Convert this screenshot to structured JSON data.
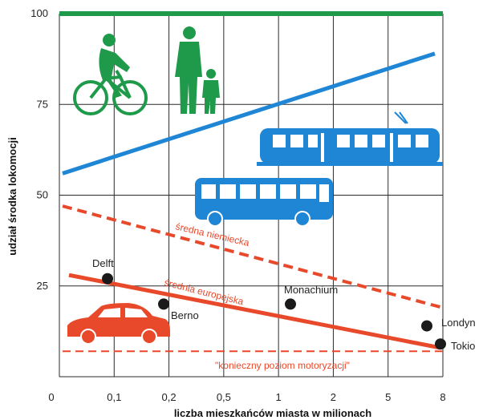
{
  "chart_data": {
    "type": "line",
    "xlabel": "liczba mieszkańców miasta w milionach",
    "ylabel": "udział środka lokomocji",
    "x_ticks": [
      "0",
      "0,1",
      "0,2",
      "0,5",
      "1",
      "2",
      "5",
      "8"
    ],
    "y_ticks": [
      25,
      50,
      75,
      100
    ],
    "ylim": [
      0,
      100
    ],
    "grid": true,
    "colors": {
      "green": "#1f9a4b",
      "blue": "#1f86d6",
      "red": "#e8492a",
      "dark": "#1a1a1a"
    },
    "series": [
      {
        "id": "green-line",
        "style": "solid",
        "color": "#1f9a4b",
        "x": [
          "0",
          "8"
        ],
        "y": [
          100,
          100
        ]
      },
      {
        "id": "blue-line",
        "style": "solid",
        "color": "#1f86d6",
        "x": [
          "0",
          "8"
        ],
        "y": [
          56,
          89
        ]
      },
      {
        "id": "srednia-niemiecka",
        "name": "średna niemiecka",
        "style": "dashed",
        "color": "#e8492a",
        "x": [
          "0",
          "8"
        ],
        "y": [
          47,
          19
        ]
      },
      {
        "id": "srednia-europejska",
        "name": "średnia europejska",
        "style": "solid",
        "color": "#e8492a",
        "x": [
          "0",
          "8"
        ],
        "y": [
          28,
          8
        ]
      },
      {
        "id": "konieczny-poziom",
        "name": "\"konieczny poziom motoryzacji\"",
        "style": "dashed-thin",
        "color": "#e8492a",
        "x": [
          "0",
          "8"
        ],
        "y": [
          7,
          7
        ]
      }
    ],
    "points": [
      {
        "name": "Delft",
        "x": "0,1",
        "y": 27
      },
      {
        "name": "Berno",
        "x": "0,2",
        "y": 20
      },
      {
        "name": "Monachium",
        "x": "1",
        "y": 20
      },
      {
        "name": "Londyn",
        "x": "8",
        "y": 14
      },
      {
        "name": "Tokio",
        "x": "8",
        "y": 9
      }
    ],
    "icons": [
      "cyclist-icon",
      "pedestrians-icon",
      "tram-icon",
      "bus-icon",
      "car-icon"
    ]
  }
}
